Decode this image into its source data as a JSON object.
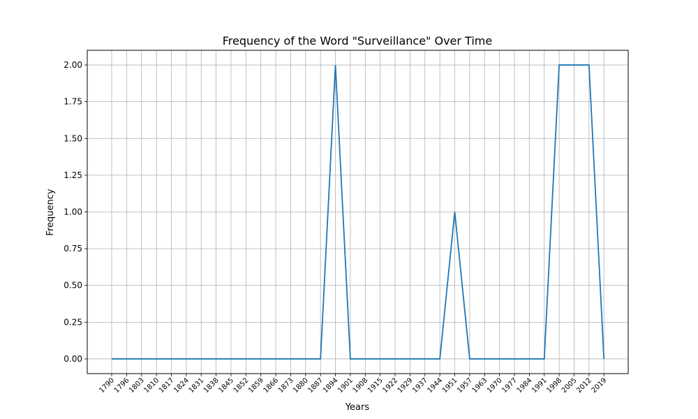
{
  "chart_data": {
    "type": "line",
    "title": "Frequency of the Word \"Surveillance\" Over Time",
    "xlabel": "Years",
    "ylabel": "Frequency",
    "x": [
      "1790",
      "1796",
      "1803",
      "1810",
      "1817",
      "1824",
      "1831",
      "1838",
      "1845",
      "1852",
      "1859",
      "1866",
      "1873",
      "1880",
      "1887",
      "1894",
      "1901",
      "1908",
      "1915",
      "1922",
      "1929",
      "1937",
      "1944",
      "1951",
      "1957",
      "1963",
      "1970",
      "1977",
      "1984",
      "1991",
      "1998",
      "2005",
      "2012",
      "2019"
    ],
    "series": [
      {
        "values": [
          0,
          0,
          0,
          0,
          0,
          0,
          0,
          0,
          0,
          0,
          0,
          0,
          0,
          0,
          0,
          2,
          0,
          0,
          0,
          0,
          0,
          0,
          0,
          1,
          0,
          0,
          0,
          0,
          0,
          0,
          2,
          2,
          2,
          0
        ],
        "color": "#1f77b4"
      }
    ],
    "yticks": [
      "0.00",
      "0.25",
      "0.50",
      "0.75",
      "1.00",
      "1.25",
      "1.50",
      "1.75",
      "2.00"
    ],
    "ylim": [
      -0.1,
      2.1
    ],
    "grid": true,
    "legend": "none"
  }
}
